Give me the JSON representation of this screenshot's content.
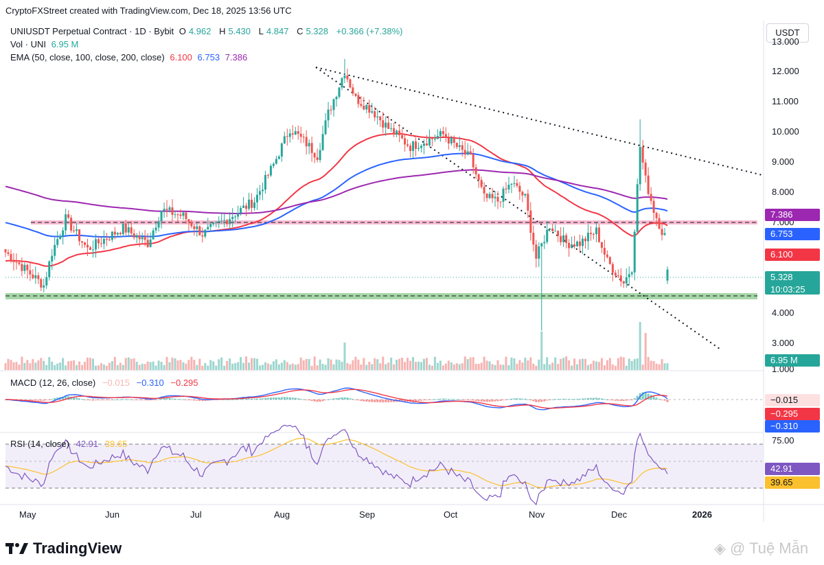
{
  "credit": "CryptoFXStreet created with TradingView.com, Dec 18, 2025 13:56 UTC",
  "header": {
    "symbol": "UNIUSDT Perpetual Contract · 1D · Bybit",
    "open_label": "O",
    "open": "4.962",
    "high_label": "H",
    "high": "5.430",
    "low_label": "L",
    "low": "4.847",
    "close_label": "C",
    "close": "5.328",
    "change": "+0.366 (+7.38%)",
    "vol_label": "Vol · UNI",
    "vol_value": "6.95 M",
    "ema_label": "EMA (50, close, 100, close, 200, close)",
    "ema50": "6.100",
    "ema100": "6.753",
    "ema200": "7.386"
  },
  "currency_button": "USDT",
  "price_axis": [
    "13.000",
    "12.000",
    "11.000",
    "10.000",
    "9.000",
    "8.000",
    "7.000",
    "4.000",
    "3.000",
    "1.000"
  ],
  "price_tags": {
    "ema200": "7.386",
    "ema100": "6.753",
    "ema50": "6.100",
    "last": "5.328",
    "countdown": "10:03:25",
    "volume": "6.95 M"
  },
  "macd": {
    "label": "MACD (12, 26, close)",
    "hist": "−0.015",
    "macd": "−0.310",
    "signal": "−0.295",
    "tags": {
      "hist": "−0.015",
      "signal": "−0.295",
      "macd": "−0.310"
    }
  },
  "rsi": {
    "label": "RSI (14, close)",
    "rsi": "42.91",
    "ma": "39.65",
    "axis_top": "75.00",
    "tags": {
      "rsi": "42.91",
      "ma": "39.65"
    }
  },
  "time_axis": [
    "May",
    "Jun",
    "Jul",
    "Aug",
    "Sep",
    "Oct",
    "Nov",
    "Dec",
    "2026"
  ],
  "brand": "TradingView",
  "watermark": "Tuệ Mẫn",
  "colors": {
    "up": "#26a69a",
    "down": "#ef5350",
    "ema50": "#f23645",
    "ema100": "#2962ff",
    "ema200": "#9c27b0",
    "rsi": "#7e57c2",
    "rsi_ma": "#fbc02d",
    "support_zone": "#a5d6a7",
    "resistance_zone": "#f8bbd0"
  },
  "chart_data": {
    "type": "candlestick",
    "title": "UNIUSDT Perpetual Contract · 1D · Bybit",
    "x_range": [
      "2025-04-20",
      "2025-12-18"
    ],
    "ylim": [
      1.0,
      13.0
    ],
    "horizontal_levels": {
      "resistance": 7.1,
      "support": 4.7
    },
    "trendlines": [
      {
        "from": [
          "2025-08-13",
          12.3
        ],
        "to": [
          "2026-01-04",
          8.7
        ]
      },
      {
        "from": [
          "2025-08-13",
          12.3
        ],
        "to": [
          "2025-12-30",
          2.9
        ]
      }
    ],
    "key_points": [
      {
        "date": "2025-05-07",
        "low": 4.6
      },
      {
        "date": "2025-06-11",
        "high": 8.6
      },
      {
        "date": "2025-08-13",
        "high": 12.3
      },
      {
        "date": "2025-10-10",
        "low": 3.3
      },
      {
        "date": "2025-11-10",
        "high": 10.3
      },
      {
        "date": "2025-12-18",
        "open": 4.962,
        "high": 5.43,
        "low": 4.847,
        "close": 5.328
      }
    ],
    "ema": {
      "ema50": 6.1,
      "ema100": 6.753,
      "ema200": 7.386
    },
    "volume_last": "6.95 M",
    "macd": {
      "hist": -0.015,
      "macd": -0.31,
      "signal": -0.295
    },
    "rsi": {
      "rsi": 42.91,
      "ma": 39.65,
      "levels": [
        70,
        50,
        30
      ]
    }
  }
}
